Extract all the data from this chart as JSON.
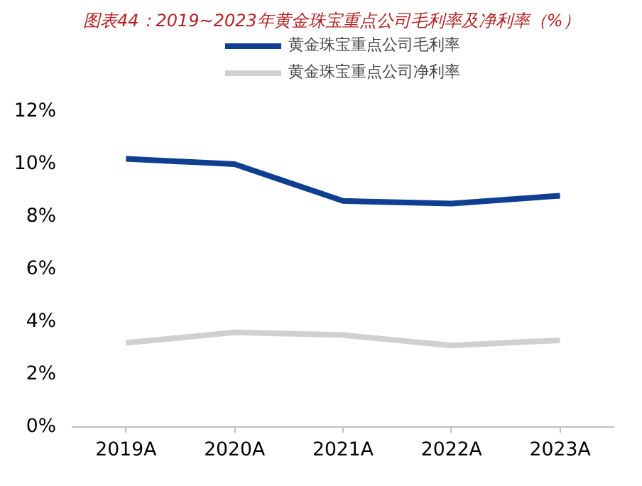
{
  "chart_data": {
    "type": "line",
    "title": "图表44：2019~2023年黄金珠宝重点公司毛利率及净利率（%）",
    "categories": [
      "2019A",
      "2020A",
      "2021A",
      "2022A",
      "2023A"
    ],
    "series": [
      {
        "name": "黄金珠宝重点公司毛利率",
        "color": "#0e3f91",
        "values": [
          10.2,
          10.0,
          8.6,
          8.5,
          8.8
        ]
      },
      {
        "name": "黄金珠宝重点公司净利率",
        "color": "#d0d0d0",
        "values": [
          3.2,
          3.6,
          3.5,
          3.1,
          3.3
        ]
      }
    ],
    "ylim": [
      0,
      12
    ],
    "yticks": [
      {
        "value": 0,
        "label": "0%"
      },
      {
        "value": 2,
        "label": "2%"
      },
      {
        "value": 4,
        "label": "4%"
      },
      {
        "value": 6,
        "label": "6%"
      },
      {
        "value": 8,
        "label": "8%"
      },
      {
        "value": 10,
        "label": "10%"
      },
      {
        "value": 12,
        "label": "12%"
      }
    ],
    "grid": false,
    "legend": "top",
    "marker": "none",
    "line_style": "solid"
  }
}
